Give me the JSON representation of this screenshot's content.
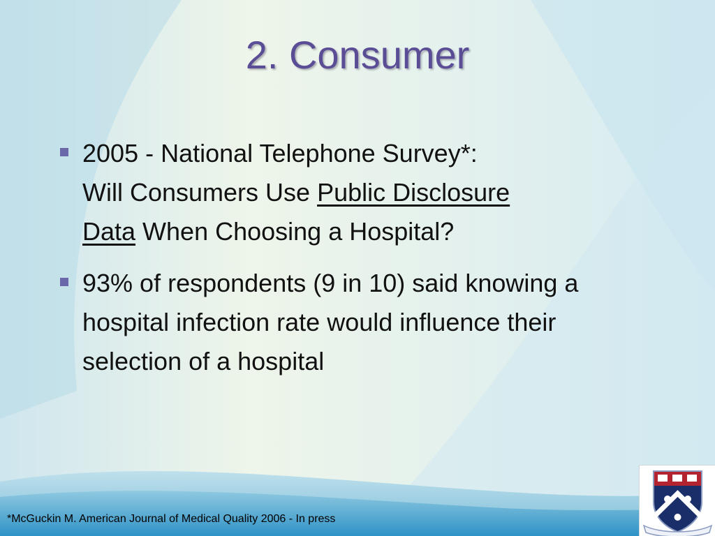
{
  "slide": {
    "title": "2. Consumer",
    "bullets": [
      {
        "line1": "2005 - National Telephone Survey*:",
        "line2_pre": "Will Consumers Use ",
        "line2_underlined": "Public Disclosure",
        "line3_underlined": "Data",
        "line3_post": " When Choosing a Hospital?"
      },
      {
        "text": "93% of respondents (9 in 10) said knowing a hospital infection rate would influence their selection of a hospital"
      }
    ],
    "footnote": "*McGuckin M. American Journal of Medical Quality 2006 - In press",
    "logo": {
      "name": "university-shield-logo",
      "colors": {
        "shield": "#1a2f6a",
        "chief": "#b32430",
        "books": "#ffffff",
        "ribbon": "#8a9ac0"
      }
    }
  },
  "theme": {
    "title_color": "#5a4d96",
    "bullet_color": "#6a68a8",
    "text_color": "#111111"
  }
}
